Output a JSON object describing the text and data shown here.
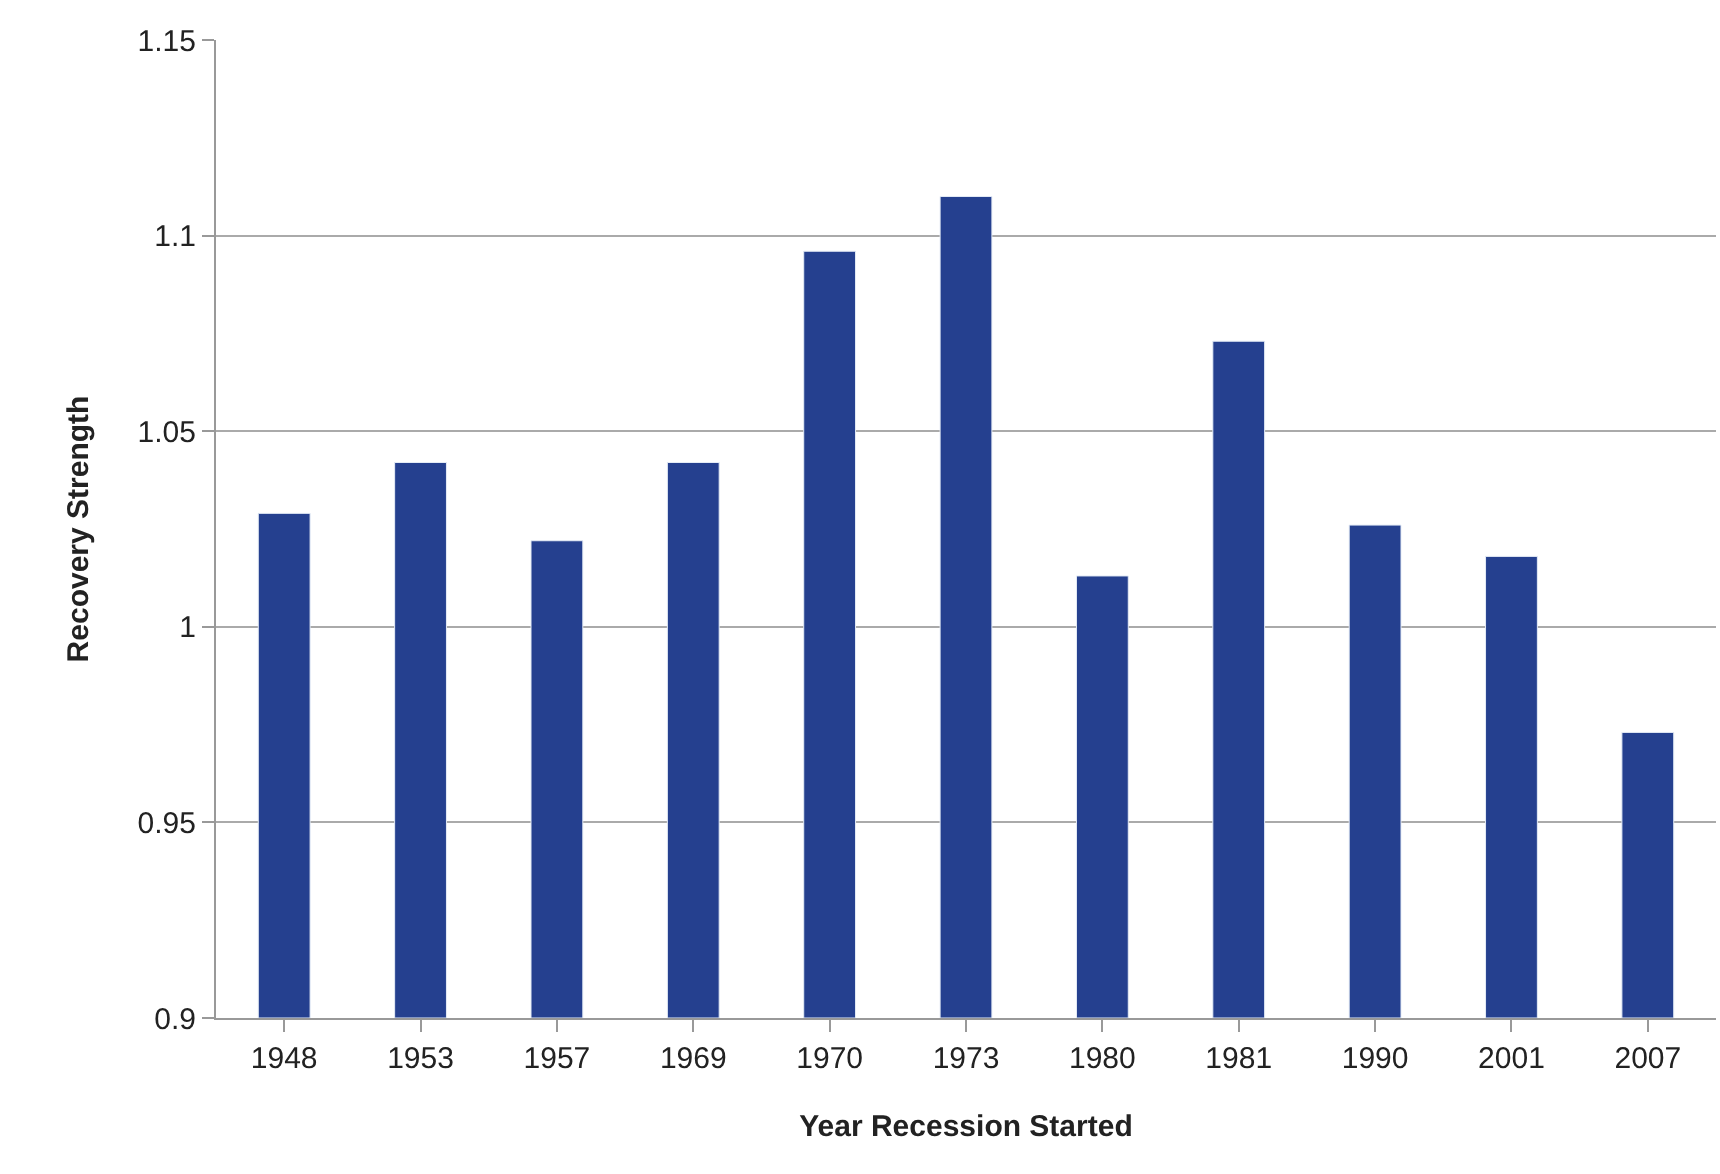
{
  "chart_data": {
    "type": "bar",
    "xlabel": "Year Recession Started",
    "ylabel": "Recovery Strength",
    "categories": [
      "1948",
      "1953",
      "1957",
      "1969",
      "1970",
      "1973",
      "1980",
      "1981",
      "1990",
      "2001",
      "2007"
    ],
    "values": [
      1.029,
      1.042,
      1.022,
      1.042,
      1.096,
      1.11,
      1.013,
      1.073,
      1.026,
      1.018,
      0.973
    ],
    "color": "#25408f",
    "ylim": [
      0.9,
      1.15
    ],
    "yticks": [
      0.9,
      0.95,
      1,
      1.05,
      1.1,
      1.15
    ],
    "grid": "y",
    "legend": false
  }
}
